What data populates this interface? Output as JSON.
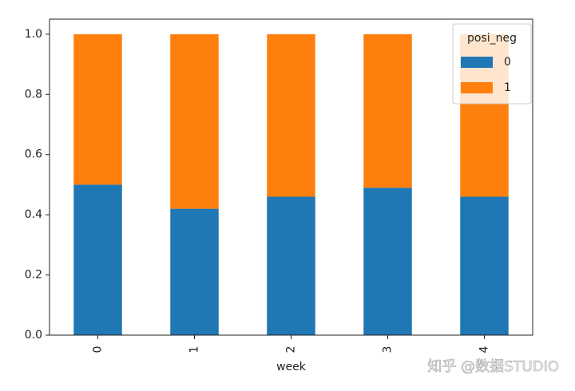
{
  "chart_data": {
    "type": "stacked_bar",
    "categories": [
      "0",
      "1",
      "2",
      "3",
      "4"
    ],
    "series": [
      {
        "name": "0",
        "color": "#1f77b4",
        "values": [
          0.5,
          0.42,
          0.46,
          0.49,
          0.46
        ]
      },
      {
        "name": "1",
        "color": "#ff7f0e",
        "values": [
          0.5,
          0.58,
          0.54,
          0.51,
          0.54
        ]
      }
    ],
    "x_label": "week",
    "legend_title": "posi_neg",
    "legend_position": "upper right",
    "ylim": [
      0,
      1.05
    ],
    "yticks": [
      {
        "value": 0,
        "label": "0.0"
      },
      0.2,
      0.4,
      0.6,
      0.8,
      {
        "value": 1,
        "label": "1.0"
      }
    ],
    "watermark": "知乎 @数据STUDIO"
  }
}
